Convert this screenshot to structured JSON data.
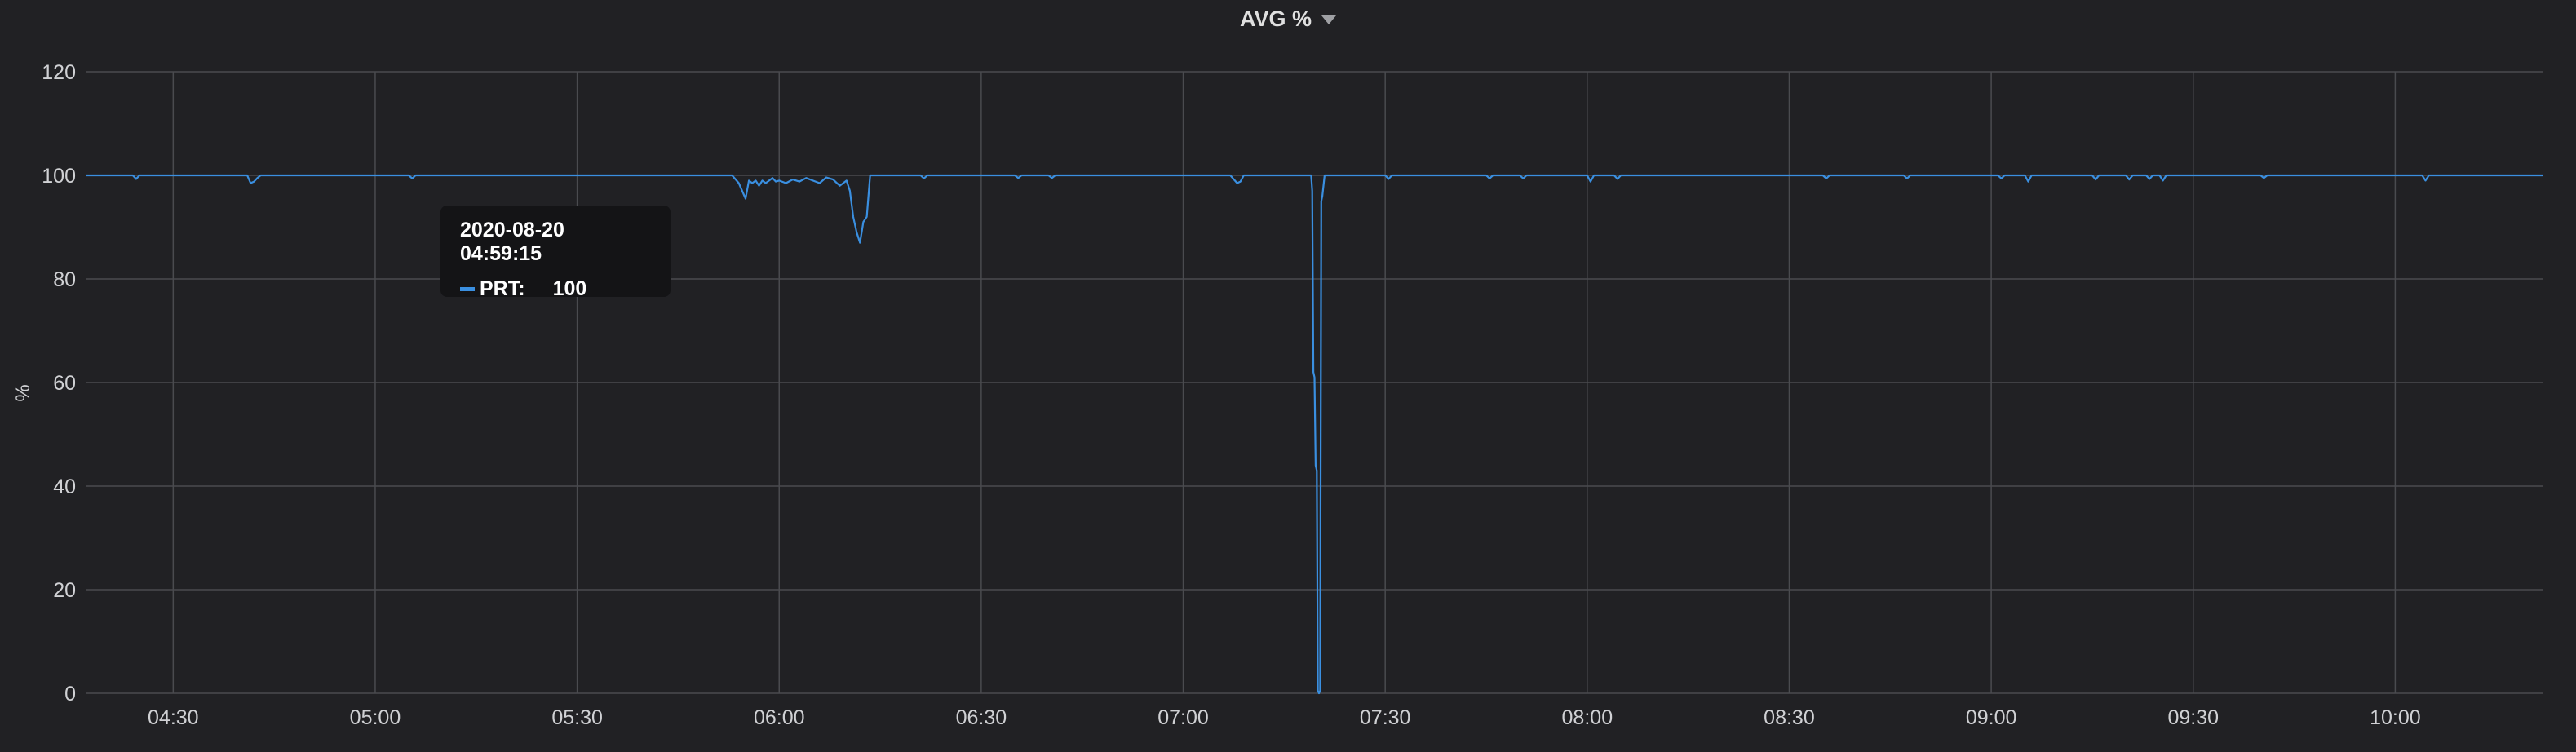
{
  "panel": {
    "title": "AVG %"
  },
  "tooltip": {
    "time": "2020-08-20 04:59:15",
    "series": "PRT:",
    "value": "100"
  },
  "colors": {
    "series": "#3a8fe0",
    "grid": "#4a4b4f",
    "background": "#212124"
  },
  "chart_data": {
    "type": "line",
    "title": "AVG %",
    "ylabel": "%",
    "xlabel": "",
    "ylim": [
      0,
      120
    ],
    "yticks": [
      0,
      20,
      40,
      60,
      80,
      100,
      120
    ],
    "xlim": [
      "04:17",
      "10:22"
    ],
    "xticks": [
      "04:30",
      "05:00",
      "05:30",
      "06:00",
      "06:30",
      "07:00",
      "07:30",
      "08:00",
      "08:30",
      "09:00",
      "09:30",
      "10:00"
    ],
    "grid": true,
    "series": [
      {
        "name": "PRT",
        "x": [
          "04:17",
          "04:24",
          "04:24:30",
          "04:25",
          "04:41",
          "04:41:30",
          "04:42",
          "04:42:30",
          "04:43",
          "04:45",
          "05:05",
          "05:05:30",
          "05:06",
          "05:53",
          "05:54",
          "05:55",
          "05:55:30",
          "05:56",
          "05:56:30",
          "05:57",
          "05:57:30",
          "05:58",
          "05:58:30",
          "05:59",
          "05:59:30",
          "06:00",
          "06:01",
          "06:02",
          "06:03",
          "06:04",
          "06:05",
          "06:06",
          "06:07",
          "06:08",
          "06:09",
          "06:10",
          "06:10:30",
          "06:11",
          "06:11:30",
          "06:12",
          "06:12:30",
          "06:13",
          "06:13:30",
          "06:14",
          "06:21",
          "06:21:30",
          "06:22",
          "06:35",
          "06:35:30",
          "06:36",
          "06:40",
          "06:40:30",
          "06:41",
          "07:07",
          "07:08",
          "07:08:30",
          "07:09",
          "07:19",
          "07:19:10",
          "07:19:20",
          "07:19:30",
          "07:19:40",
          "07:19:50",
          "07:20",
          "07:20:10",
          "07:20:20",
          "07:20:30",
          "07:20:40",
          "07:21",
          "07:30",
          "07:30:30",
          "07:31",
          "07:45",
          "07:45:30",
          "07:46",
          "07:50",
          "07:50:30",
          "07:51",
          "08:00",
          "08:00:30",
          "08:01",
          "08:04",
          "08:04:30",
          "08:05",
          "08:35",
          "08:35:30",
          "08:36",
          "08:47",
          "08:47:30",
          "08:48",
          "09:01",
          "09:01:30",
          "09:02",
          "09:05",
          "09:05:30",
          "09:06",
          "09:15",
          "09:15:30",
          "09:16",
          "09:20",
          "09:20:30",
          "09:21",
          "09:23",
          "09:23:30",
          "09:24",
          "09:25",
          "09:25:30",
          "09:26",
          "09:40",
          "09:40:30",
          "09:41",
          "10:04",
          "10:04:30",
          "10:05",
          "10:22"
        ],
        "values": [
          100,
          100,
          99.3,
          100,
          100,
          98.5,
          98.8,
          99.5,
          100,
          100,
          100,
          99.4,
          100,
          100,
          98.5,
          95.5,
          99,
          98.5,
          99,
          98,
          99,
          98.5,
          99,
          99.5,
          98.8,
          99,
          98.5,
          99.2,
          98.8,
          99.5,
          99,
          98.5,
          99.6,
          99.2,
          98,
          99,
          97,
          92,
          89,
          87,
          91,
          92,
          100,
          100,
          100,
          99.4,
          100,
          100,
          99.5,
          100,
          100,
          99.5,
          100,
          100,
          98.5,
          98.8,
          100,
          100,
          97,
          62,
          61,
          44,
          43,
          0.5,
          0,
          0.5,
          95,
          96,
          100,
          100,
          99.3,
          100,
          100,
          99.4,
          100,
          100,
          99.4,
          100,
          100,
          98.8,
          100,
          100,
          99.3,
          100,
          100,
          99.4,
          100,
          100,
          99.4,
          100,
          100,
          99.4,
          100,
          100,
          98.8,
          100,
          100,
          99.2,
          100,
          100,
          99.2,
          100,
          100,
          99.3,
          100,
          100,
          99,
          100,
          100,
          99.5,
          100,
          100,
          99,
          100,
          100
        ]
      }
    ]
  }
}
